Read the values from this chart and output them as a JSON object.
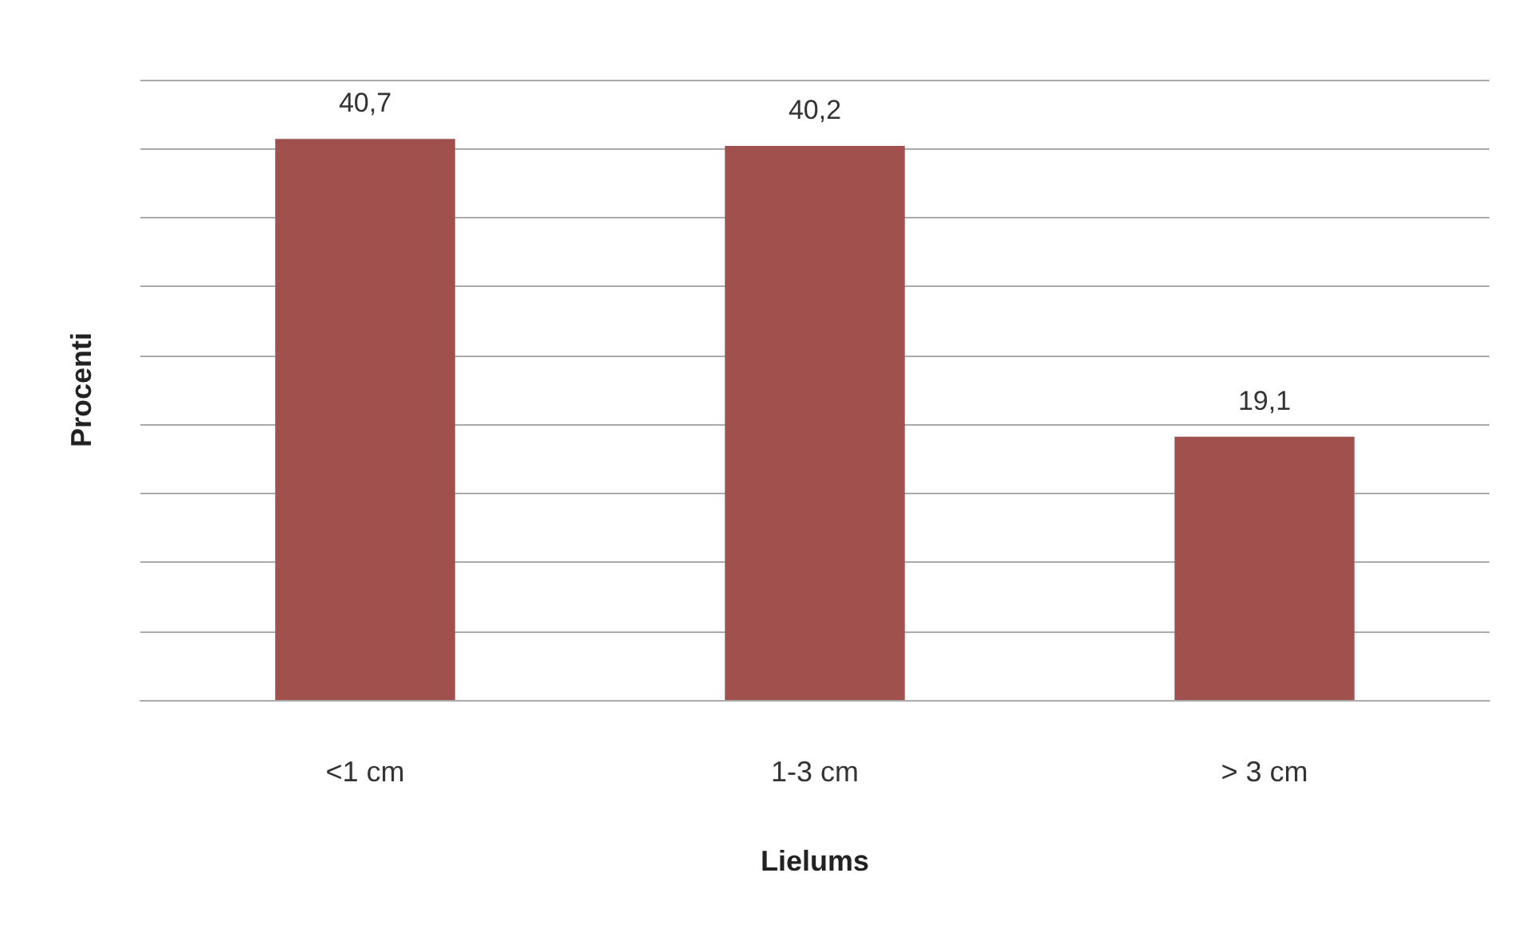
{
  "chart_data": {
    "type": "bar",
    "xlabel": "Lielums",
    "ylabel": "Procenti",
    "categories": [
      "<1 cm",
      "1-3 cm",
      "> 3 cm"
    ],
    "values": [
      40.7,
      40.2,
      19.1
    ],
    "value_labels": [
      "40,7",
      "40,2",
      "19,1"
    ],
    "color": "#a0504d",
    "ylim": [
      0,
      45
    ],
    "yticks": [
      {
        "value": 0,
        "label": null
      },
      {
        "value": 5,
        "label": null
      },
      {
        "value": 10,
        "label": null
      },
      {
        "value": 15,
        "label": null
      },
      {
        "value": 20,
        "label": null
      },
      {
        "value": 25,
        "label": null
      },
      {
        "value": 30,
        "label": null
      },
      {
        "value": 35,
        "label": null
      },
      {
        "value": 40,
        "label": null
      },
      {
        "value": 45,
        "label": null
      }
    ],
    "tick_labels": "x",
    "grid": "y"
  }
}
